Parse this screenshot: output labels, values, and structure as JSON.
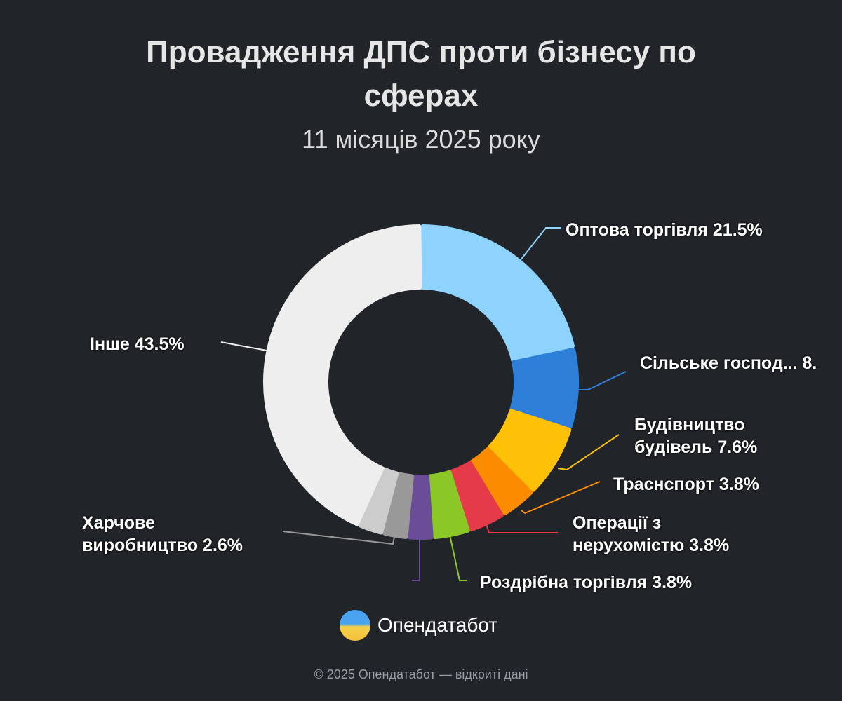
{
  "header": {
    "title_line1": "Провадження ДПС проти бізнесу по",
    "title_line2": "сферах",
    "subtitle": "11 місяців 2025 року"
  },
  "labels": {
    "l0": "Оптова торгівля 21.5%",
    "l1": "Сільське господ... 8.",
    "l2a": "Будівництво",
    "l2b": "будівель 7.6%",
    "l3": "Траснспорт 3.8%",
    "l4a": "Операції з",
    "l4b": "нерухомістю 3.8%",
    "l5": "Роздрібна торгівля 3.8%",
    "l6a": "Харчове",
    "l6b": "виробництво 2.6%",
    "l7": "Інше 43.5%"
  },
  "brand": {
    "name": "Опендатабот"
  },
  "footer": {
    "text": "© 2025 Опендатабот — відкриті дані"
  },
  "chart_data": {
    "type": "pie",
    "donut": true,
    "title": "Провадження ДПС проти бізнесу по сферах",
    "subtitle": "11 місяців 2025 року",
    "categories": [
      "Оптова торгівля",
      "Сільське господарство",
      "Будівництво будівель",
      "Траснспорт",
      "Операції з нерухомістю",
      "Роздрібна торгівля",
      "(unlabeled purple)",
      "Харчове виробництво",
      "(unlabeled light gray)",
      "Інше"
    ],
    "values": [
      21.5,
      8.3,
      7.6,
      3.8,
      3.8,
      3.8,
      2.6,
      2.6,
      2.6,
      43.5
    ],
    "colors": [
      "#8dd3fd",
      "#2d7fd8",
      "#ffc107",
      "#fb8c00",
      "#e53a4a",
      "#8bc727",
      "#6b4c96",
      "#999999",
      "#cccccc",
      "#eeeeee"
    ]
  }
}
